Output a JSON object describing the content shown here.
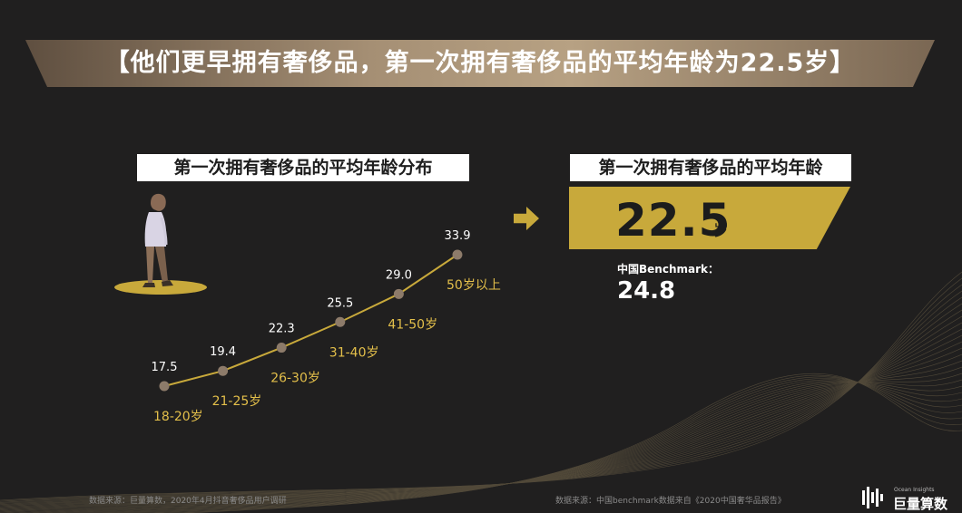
{
  "header": {
    "title": "【他们更早拥有奢侈品，第一次拥有奢侈品的平均年龄为22.5岁】"
  },
  "left_panel": {
    "label": "第一次拥有奢侈品的平均年龄分布"
  },
  "right_panel": {
    "label": "第一次拥有奢侈品的平均年龄",
    "value": "22.5",
    "unit": "岁",
    "benchmark_label": "中国Benchmark：",
    "benchmark_value": "24.8"
  },
  "chart_data": {
    "type": "line",
    "title": "第一次拥有奢侈品的平均年龄分布",
    "categories": [
      "18-20岁",
      "21-25岁",
      "26-30岁",
      "31-40岁",
      "41-50岁",
      "50岁以上"
    ],
    "values": [
      17.5,
      19.4,
      22.3,
      25.5,
      29.0,
      33.9
    ],
    "value_labels": [
      "17.5",
      "19.4",
      "22.3",
      "25.5",
      "29.0",
      "33.9"
    ],
    "xlabel": "",
    "ylabel": "",
    "ylim": [
      17.5,
      33.9
    ],
    "grid": false,
    "legend": "none",
    "colors": {
      "line": "#c8a93b",
      "marker": "#8d7b6a",
      "category_label": "#e3bf4a",
      "value_label": "#ffffff"
    }
  },
  "colors": {
    "accent": "#c8a93b",
    "background": "#201f1f"
  },
  "footer": {
    "left": "数据来源：巨量算数，2020年4月抖音奢侈品用户调研",
    "right": "数据来源：中国benchmark数据来自《2020中国奢华品报告》"
  },
  "logo": {
    "name_en": "Ocean Insights",
    "name_cn": "巨量算数",
    "icon": "ocean-insights-logo-icon"
  }
}
